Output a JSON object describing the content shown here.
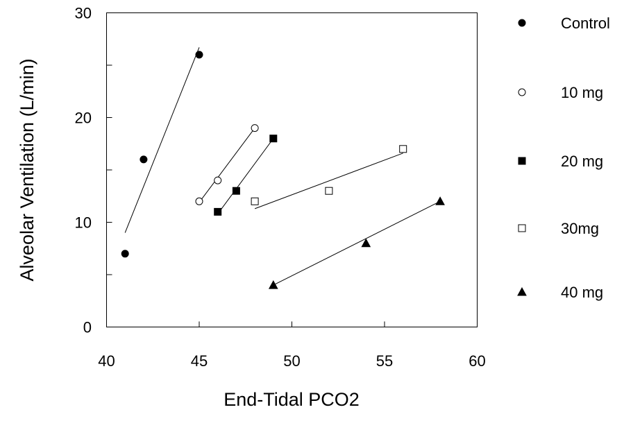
{
  "chart_data": {
    "type": "scatter",
    "xlabel": "End-Tidal PCO2",
    "ylabel": "Alveolar Ventilation (L/min)",
    "xlim": [
      40,
      60
    ],
    "ylim": [
      0,
      30
    ],
    "x_ticks": [
      40,
      45,
      50,
      55,
      60
    ],
    "y_ticks": [
      0,
      10,
      20,
      30
    ],
    "legend_position": "right",
    "grid": false,
    "series": [
      {
        "name": "Control",
        "marker": "filled-circle",
        "color": "#000000",
        "points": [
          [
            41,
            7
          ],
          [
            42,
            16
          ],
          [
            45,
            26
          ]
        ],
        "fit_line": [
          [
            41,
            9
          ],
          [
            45,
            26.7
          ]
        ]
      },
      {
        "name": "10 mg",
        "marker": "open-circle",
        "color": "#000000",
        "points": [
          [
            45,
            12
          ],
          [
            46,
            14
          ],
          [
            48,
            19
          ]
        ],
        "fit_line": [
          [
            45,
            11.9
          ],
          [
            48,
            19
          ]
        ]
      },
      {
        "name": "20 mg",
        "marker": "filled-square",
        "color": "#000000",
        "points": [
          [
            46,
            11
          ],
          [
            47,
            13
          ],
          [
            49,
            18
          ]
        ],
        "fit_line": [
          [
            46,
            10.8
          ],
          [
            49,
            18
          ]
        ]
      },
      {
        "name": "30mg",
        "marker": "open-square",
        "color": "#000000",
        "points": [
          [
            48,
            12
          ],
          [
            52,
            13
          ],
          [
            56,
            17
          ]
        ],
        "fit_line": [
          [
            48,
            11.3
          ],
          [
            56,
            16.6
          ]
        ]
      },
      {
        "name": "40 mg",
        "marker": "filled-triangle",
        "color": "#000000",
        "points": [
          [
            49,
            4
          ],
          [
            54,
            8
          ],
          [
            58,
            12
          ]
        ],
        "fit_line": [
          [
            49,
            4
          ],
          [
            58,
            12
          ]
        ]
      }
    ]
  }
}
